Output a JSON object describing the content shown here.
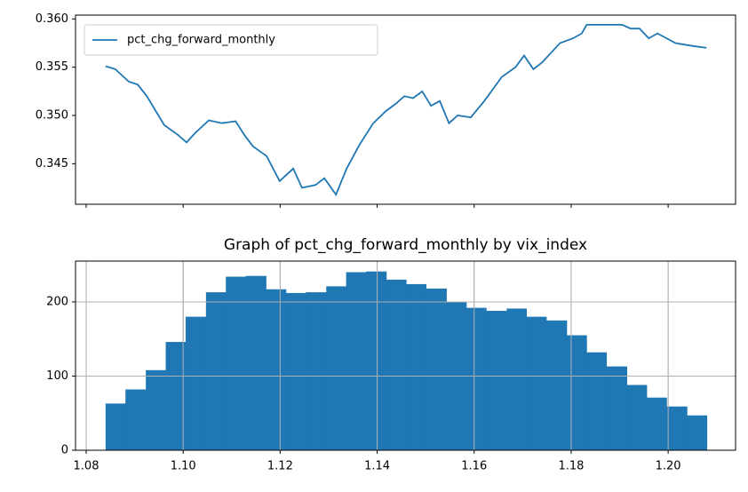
{
  "chart_data": [
    {
      "type": "line",
      "xlim": [
        1.0778,
        1.2139
      ],
      "ylim": [
        0.3408,
        0.3604
      ],
      "yticks": [
        0.345,
        {
          "value": 0.35,
          "label": "0.350"
        },
        0.355,
        {
          "value": 0.36,
          "label": "0.360"
        }
      ],
      "legend": "upper left",
      "grid": false,
      "x": [
        1.084,
        1.086,
        1.0888,
        1.0906,
        1.0925,
        1.0943,
        1.0961,
        1.0989,
        1.1007,
        1.1025,
        1.1053,
        1.108,
        1.1108,
        1.1126,
        1.1144,
        1.1172,
        1.1199,
        1.1227,
        1.1245,
        1.1273,
        1.1291,
        1.1315,
        1.1337,
        1.1364,
        1.1392,
        1.1419,
        1.1438,
        1.1456,
        1.1474,
        1.1493,
        1.1511,
        1.1529,
        1.1548,
        1.1566,
        1.1593,
        1.1621,
        1.1657,
        1.1685,
        1.1703,
        1.1722,
        1.174,
        1.1777,
        1.1804,
        1.1822,
        1.1832,
        1.1905,
        1.1923,
        1.1941,
        1.196,
        1.1978,
        1.2015,
        1.2051,
        1.2079
      ],
      "series": [
        {
          "name": "pct_chg_forward_monthly",
          "color": "#1f77b4",
          "values": [
            0.3551,
            0.3548,
            0.3535,
            0.3532,
            0.352,
            0.3505,
            0.349,
            0.348,
            0.3472,
            0.3482,
            0.3495,
            0.3492,
            0.3494,
            0.348,
            0.3468,
            0.3458,
            0.3432,
            0.3445,
            0.3425,
            0.3428,
            0.3435,
            0.3418,
            0.3445,
            0.347,
            0.3492,
            0.3505,
            0.3512,
            0.352,
            0.3518,
            0.3525,
            0.351,
            0.3515,
            0.3492,
            0.35,
            0.3498,
            0.3515,
            0.354,
            0.355,
            0.3562,
            0.3548,
            0.3555,
            0.3575,
            0.358,
            0.3585,
            0.3594,
            0.3594,
            0.359,
            0.359,
            0.358,
            0.3585,
            0.3575,
            0.3572,
            0.357
          ]
        }
      ]
    },
    {
      "type": "histogram",
      "title": "Graph of pct_chg_forward_monthly by vix_index",
      "color": "#1f77b4",
      "grid": true,
      "xlim": [
        1.0778,
        1.2139
      ],
      "ylim": [
        0,
        255
      ],
      "xticks": [
        1.08,
        {
          "value": 1.1,
          "label": "1.10"
        },
        1.12,
        1.14,
        1.16,
        1.18,
        {
          "value": 1.2,
          "label": "1.20"
        }
      ],
      "yticks": [
        0,
        100,
        200
      ],
      "bins": [
        1.084,
        1.0881,
        1.0923,
        1.0964,
        1.1005,
        1.1047,
        1.1088,
        1.1129,
        1.1171,
        1.1212,
        1.1253,
        1.1295,
        1.1336,
        1.1377,
        1.1419,
        1.146,
        1.1501,
        1.1543,
        1.1584,
        1.1625,
        1.1667,
        1.1708,
        1.1749,
        1.1791,
        1.1832,
        1.1873,
        1.1915,
        1.1956,
        1.1997,
        1.2039,
        1.208
      ],
      "values": [
        63,
        82,
        108,
        146,
        180,
        213,
        234,
        235,
        217,
        212,
        213,
        221,
        240,
        241,
        230,
        224,
        218,
        200,
        192,
        188,
        191,
        180,
        175,
        155,
        132,
        113,
        88,
        71,
        59,
        47
      ]
    }
  ]
}
